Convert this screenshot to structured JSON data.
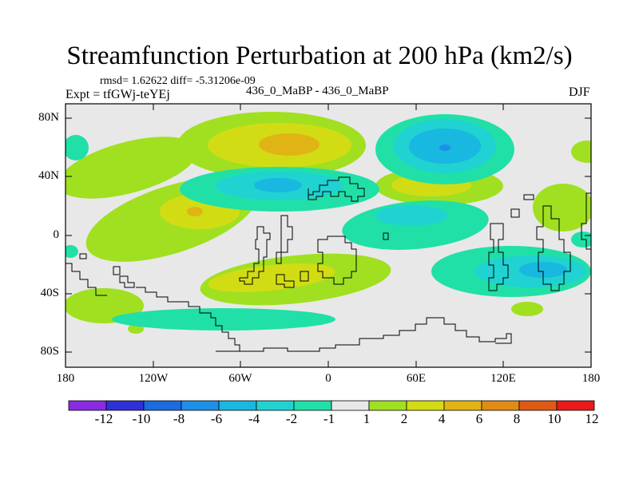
{
  "title": "Streamfunction Perturbation at 200 hPa (km2/s)",
  "stats": "rmsd= 1.62622 diff= -5.31206e-09",
  "expt_label": "Expt = tfGWj-teYEj",
  "runs_label": "436_0_MaBP - 436_0_MaBP",
  "season": "DJF",
  "lat_labels": [
    "80N",
    "40N",
    "0",
    "40S",
    "80S"
  ],
  "lon_labels": [
    "180",
    "120W",
    "60W",
    "0",
    "60E",
    "120E",
    "180"
  ],
  "colorbar": {
    "labels": [
      "-12",
      "-10",
      "-8",
      "-6",
      "-4",
      "-2",
      "-1",
      "1",
      "2",
      "4",
      "6",
      "8",
      "10",
      "12"
    ],
    "colors": [
      "#8a2be2",
      "#3030d8",
      "#1c6be0",
      "#1e90e8",
      "#18b8e0",
      "#20d2d2",
      "#20e0a8",
      "#e8e8e8",
      "#a0e020",
      "#d2dc14",
      "#e0b414",
      "#e08c14",
      "#e05a14",
      "#e81a1a"
    ]
  },
  "map_colors": {
    "ocean_bg": "#e8e8e8",
    "pos1": "#a0e020",
    "pos2": "#d2dc14",
    "pos3": "#e0b414",
    "neg1": "#20e0a8",
    "neg2": "#20d2d2",
    "neg3": "#18b8e0",
    "neg4": "#1e90e8"
  }
}
